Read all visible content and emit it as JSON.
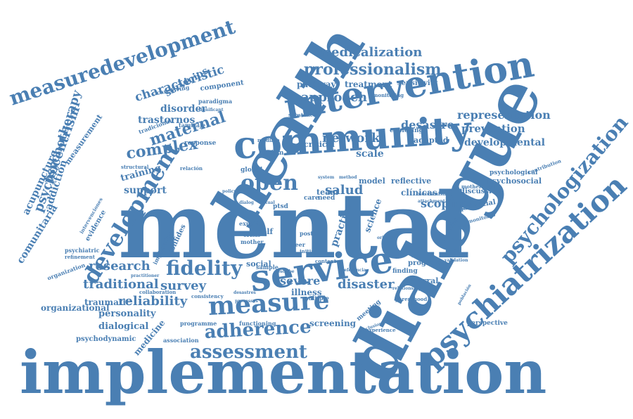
{
  "word_cloud": {
    "color": "#4a7fb3",
    "words": [
      {
        "t": "implementation"
      },
      {
        "t": "mental"
      },
      {
        "t": "dialogue"
      },
      {
        "t": "health"
      },
      {
        "t": "community"
      },
      {
        "t": "intervention"
      },
      {
        "t": "service"
      },
      {
        "t": "measure"
      },
      {
        "t": "psychiatrization"
      },
      {
        "t": "measuredevelopment"
      },
      {
        "t": "development"
      },
      {
        "t": "adherence"
      },
      {
        "t": "assessment"
      },
      {
        "t": "fidelity"
      },
      {
        "t": "open"
      },
      {
        "t": "professionalism"
      },
      {
        "t": "psychologization"
      },
      {
        "t": "medicalization"
      },
      {
        "t": "complex"
      },
      {
        "t": "maternal"
      },
      {
        "t": "psychocentrism"
      },
      {
        "t": "psychotherapy"
      },
      {
        "t": "characteristic"
      },
      {
        "t": "research"
      },
      {
        "t": "traditional"
      },
      {
        "t": "survey"
      },
      {
        "t": "reliability"
      },
      {
        "t": "approach"
      },
      {
        "t": "network"
      },
      {
        "t": "representation"
      },
      {
        "t": "prevention"
      },
      {
        "t": "desastre"
      },
      {
        "t": "developmental"
      },
      {
        "t": "acupuncture"
      },
      {
        "t": "comunitaria"
      },
      {
        "t": "addiction"
      },
      {
        "t": "disorder"
      },
      {
        "t": "trastornos"
      },
      {
        "t": "servicios"
      },
      {
        "t": "support"
      },
      {
        "t": "training"
      },
      {
        "t": "severe"
      },
      {
        "t": "disaster"
      },
      {
        "t": "salud"
      },
      {
        "t": "scoping"
      },
      {
        "t": "personality"
      },
      {
        "t": "dialogical"
      },
      {
        "t": "traumatic"
      },
      {
        "t": "organizational"
      },
      {
        "t": "medicine"
      },
      {
        "t": "psychodynamic"
      },
      {
        "t": "practice"
      },
      {
        "t": "science"
      },
      {
        "t": "screening"
      },
      {
        "t": "illness"
      },
      {
        "t": "pathway"
      },
      {
        "t": "treatment"
      },
      {
        "t": "sensitivity"
      },
      {
        "t": "model"
      },
      {
        "t": "reflective"
      },
      {
        "t": "clínicas"
      },
      {
        "t": "psychosocial"
      },
      {
        "t": "psychological"
      },
      {
        "t": "discussion"
      },
      {
        "t": "potential"
      },
      {
        "t": "team"
      },
      {
        "t": "self"
      },
      {
        "t": "social"
      },
      {
        "t": "referral"
      },
      {
        "t": "program"
      },
      {
        "t": "finding"
      },
      {
        "t": "perspective"
      },
      {
        "t": "evidence"
      },
      {
        "t": "measurement"
      },
      {
        "t": "component"
      },
      {
        "t": "paradigma"
      },
      {
        "t": "caregiving"
      },
      {
        "t": "tradicional"
      },
      {
        "t": "adapted"
      },
      {
        "t": "critical"
      },
      {
        "t": "exploring"
      },
      {
        "t": "global"
      },
      {
        "t": "care"
      },
      {
        "t": "need"
      },
      {
        "t": "crisis"
      },
      {
        "t": "mother"
      },
      {
        "t": "expert"
      },
      {
        "t": "sample"
      },
      {
        "t": "content"
      },
      {
        "t": "functioning"
      },
      {
        "t": "experience"
      },
      {
        "t": "meeting"
      },
      {
        "t": "parenthood"
      },
      {
        "t": "multiple"
      },
      {
        "t": "programme"
      },
      {
        "t": "association"
      },
      {
        "t": "consistency"
      },
      {
        "t": "collaboration"
      },
      {
        "t": "practitioner"
      },
      {
        "t": "organization"
      },
      {
        "t": "psychiatric"
      },
      {
        "t": "refinement"
      },
      {
        "t": "intervenciones"
      },
      {
        "t": "implication"
      },
      {
        "t": "confides"
      },
      {
        "t": "structural"
      },
      {
        "t": "response"
      },
      {
        "t": "relación"
      },
      {
        "t": "mediate"
      },
      {
        "t": "sanism"
      },
      {
        "t": "substance"
      },
      {
        "t": "monitoring"
      },
      {
        "t": "contribution"
      },
      {
        "t": "motherhood"
      },
      {
        "t": "mechanism"
      },
      {
        "t": "attachment"
      },
      {
        "t": "parenting"
      },
      {
        "t": "monitoreo"
      },
      {
        "t": "validation"
      },
      {
        "t": "relationship"
      },
      {
        "t": "oriental"
      },
      {
        "t": "ptsd"
      },
      {
        "t": "post"
      },
      {
        "t": "peer"
      },
      {
        "t": "initial"
      },
      {
        "t": "tamizaje"
      },
      {
        "t": "significant"
      },
      {
        "t": "ritual"
      },
      {
        "t": "system"
      },
      {
        "t": "method"
      },
      {
        "t": "dialog"
      },
      {
        "t": "policy"
      },
      {
        "t": "describe"
      },
      {
        "t": "processes"
      },
      {
        "t": "desastres"
      },
      {
        "t": "referencia"
      },
      {
        "t": "población"
      },
      {
        "t": "conclusion"
      },
      {
        "t": "scale"
      }
    ]
  }
}
